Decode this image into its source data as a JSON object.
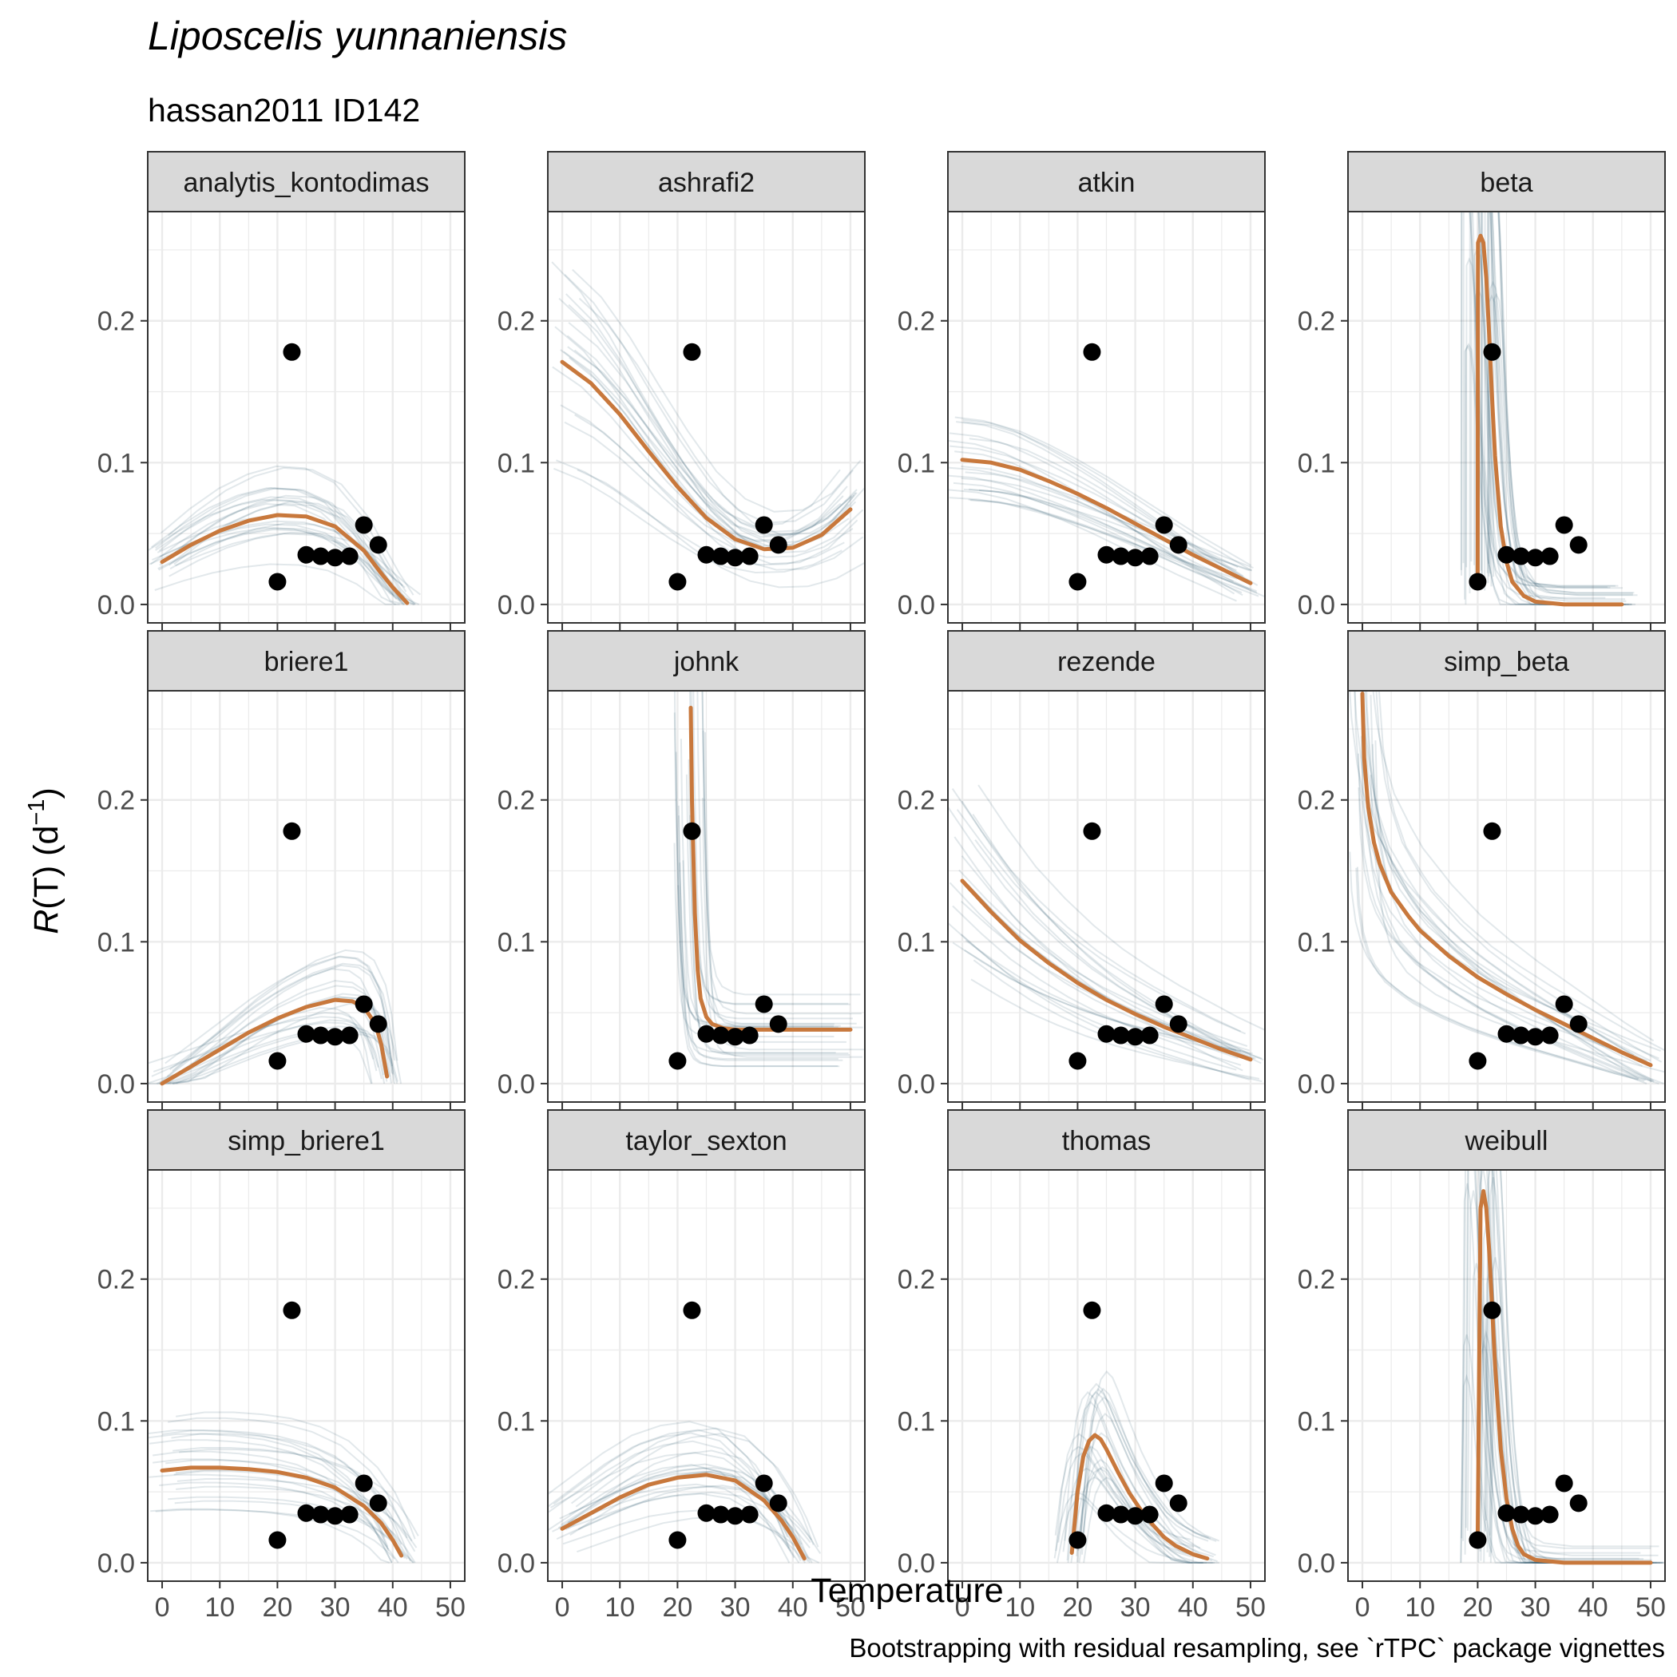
{
  "figure": {
    "title": "Liposcelis yunnaniensis",
    "subtitle": "hassan2011 ID142",
    "caption": "Bootstrapping with residual resampling, see `rTPC` package vignettes",
    "colors": {
      "fit": "#C8783C",
      "bootstrap": "#1F4E63",
      "points": "#000000",
      "strip_fill": "#D9D9D9",
      "grid": "#EBEBEB"
    }
  },
  "chart_data": {
    "type": "scatter",
    "facet_layout": "3x4 grid",
    "xlabel": "Temperature",
    "ylabel_main": "R",
    "ylabel_rest": "(T) (d",
    "ylabel_sup": "−1",
    "ylabel_end": ")",
    "xlim": [
      -2.5,
      52.5
    ],
    "ylim": [
      -0.013,
      0.277
    ],
    "x_ticks": [
      0,
      10,
      20,
      30,
      40,
      50
    ],
    "y_ticks": [
      0.0,
      0.1,
      0.2
    ],
    "y_tick_labels": [
      "0.0",
      "0.1",
      "0.2"
    ],
    "grid": true,
    "points": {
      "x": [
        20,
        22.5,
        25,
        27.5,
        30,
        32.5,
        35,
        37.5
      ],
      "y": [
        0.016,
        0.178,
        0.035,
        0.034,
        0.033,
        0.034,
        0.056,
        0.042
      ]
    },
    "panels": [
      {
        "name": "analytis_kontodimas",
        "fit": {
          "x": [
            0,
            5,
            10,
            15,
            20,
            25,
            30,
            35,
            38,
            40,
            42.5
          ],
          "y": [
            0.03,
            0.042,
            0.052,
            0.059,
            0.063,
            0.062,
            0.055,
            0.038,
            0.022,
            0.012,
            0.001
          ]
        }
      },
      {
        "name": "ashrafi2",
        "fit": {
          "x": [
            0,
            5,
            10,
            15,
            20,
            25,
            30,
            35,
            40,
            45,
            50
          ],
          "y": [
            0.171,
            0.156,
            0.134,
            0.108,
            0.083,
            0.061,
            0.046,
            0.039,
            0.04,
            0.049,
            0.067
          ]
        }
      },
      {
        "name": "atkin",
        "fit": {
          "x": [
            0,
            5,
            10,
            15,
            20,
            25,
            30,
            35,
            40,
            45,
            50
          ],
          "y": [
            0.102,
            0.1,
            0.095,
            0.087,
            0.078,
            0.068,
            0.057,
            0.046,
            0.035,
            0.025,
            0.015
          ]
        }
      },
      {
        "name": "beta",
        "fit": {
          "x": [
            20,
            20.05,
            20.5,
            21,
            21.5,
            22,
            22.5,
            23,
            24,
            25,
            26,
            28,
            30,
            35,
            40,
            45
          ],
          "y": [
            0.016,
            0.255,
            0.26,
            0.255,
            0.23,
            0.19,
            0.145,
            0.105,
            0.055,
            0.03,
            0.016,
            0.006,
            0.002,
            0.0,
            0.0,
            0.0
          ]
        }
      },
      {
        "name": "briere1",
        "fit": {
          "x": [
            0,
            5,
            10,
            15,
            20,
            25,
            30,
            33,
            35,
            37,
            38,
            39
          ],
          "y": [
            0.0,
            0.012,
            0.024,
            0.036,
            0.046,
            0.054,
            0.059,
            0.058,
            0.054,
            0.042,
            0.028,
            0.005
          ]
        }
      },
      {
        "name": "johnk",
        "fit": {
          "x": [
            22.3,
            22.5,
            23,
            23.5,
            24,
            25,
            26,
            28,
            30,
            35,
            40,
            45,
            50
          ],
          "y": [
            0.265,
            0.2,
            0.12,
            0.08,
            0.06,
            0.047,
            0.042,
            0.039,
            0.038,
            0.038,
            0.038,
            0.038,
            0.038
          ]
        }
      },
      {
        "name": "rezende",
        "fit": {
          "x": [
            0,
            5,
            10,
            15,
            20,
            25,
            30,
            35,
            40,
            45,
            50
          ],
          "y": [
            0.143,
            0.121,
            0.101,
            0.085,
            0.071,
            0.059,
            0.049,
            0.04,
            0.032,
            0.024,
            0.017
          ]
        }
      },
      {
        "name": "simp_beta",
        "fit": {
          "x": [
            0,
            0.3,
            1,
            2,
            3,
            5,
            8,
            10,
            15,
            20,
            25,
            30,
            35,
            40,
            45,
            50
          ],
          "y": [
            0.275,
            0.23,
            0.195,
            0.17,
            0.155,
            0.135,
            0.118,
            0.108,
            0.09,
            0.075,
            0.063,
            0.052,
            0.042,
            0.032,
            0.022,
            0.013
          ]
        }
      },
      {
        "name": "simp_briere1",
        "fit": {
          "x": [
            0,
            5,
            10,
            15,
            20,
            25,
            30,
            35,
            38,
            40,
            41.5
          ],
          "y": [
            0.065,
            0.067,
            0.067,
            0.066,
            0.064,
            0.06,
            0.053,
            0.04,
            0.028,
            0.016,
            0.005
          ]
        }
      },
      {
        "name": "taylor_sexton",
        "fit": {
          "x": [
            0,
            5,
            10,
            15,
            20,
            25,
            30,
            35,
            38,
            40,
            42
          ],
          "y": [
            0.024,
            0.035,
            0.046,
            0.055,
            0.06,
            0.062,
            0.058,
            0.044,
            0.03,
            0.018,
            0.003
          ]
        }
      },
      {
        "name": "thomas",
        "fit": {
          "x": [
            19,
            20,
            21,
            22,
            23,
            24,
            25,
            27,
            29,
            31,
            33,
            35,
            37,
            40,
            42.5
          ],
          "y": [
            0.007,
            0.05,
            0.075,
            0.086,
            0.09,
            0.087,
            0.08,
            0.064,
            0.049,
            0.037,
            0.027,
            0.018,
            0.012,
            0.006,
            0.003
          ]
        }
      },
      {
        "name": "weibull",
        "fit": {
          "x": [
            20,
            20.5,
            21,
            21.5,
            22,
            22.5,
            23,
            24,
            25,
            26,
            27,
            28,
            30,
            35,
            40,
            45,
            50
          ],
          "y": [
            0.016,
            0.25,
            0.262,
            0.25,
            0.22,
            0.18,
            0.14,
            0.08,
            0.045,
            0.024,
            0.012,
            0.006,
            0.002,
            0.0,
            0.0,
            0.0,
            0.0
          ]
        }
      }
    ]
  }
}
